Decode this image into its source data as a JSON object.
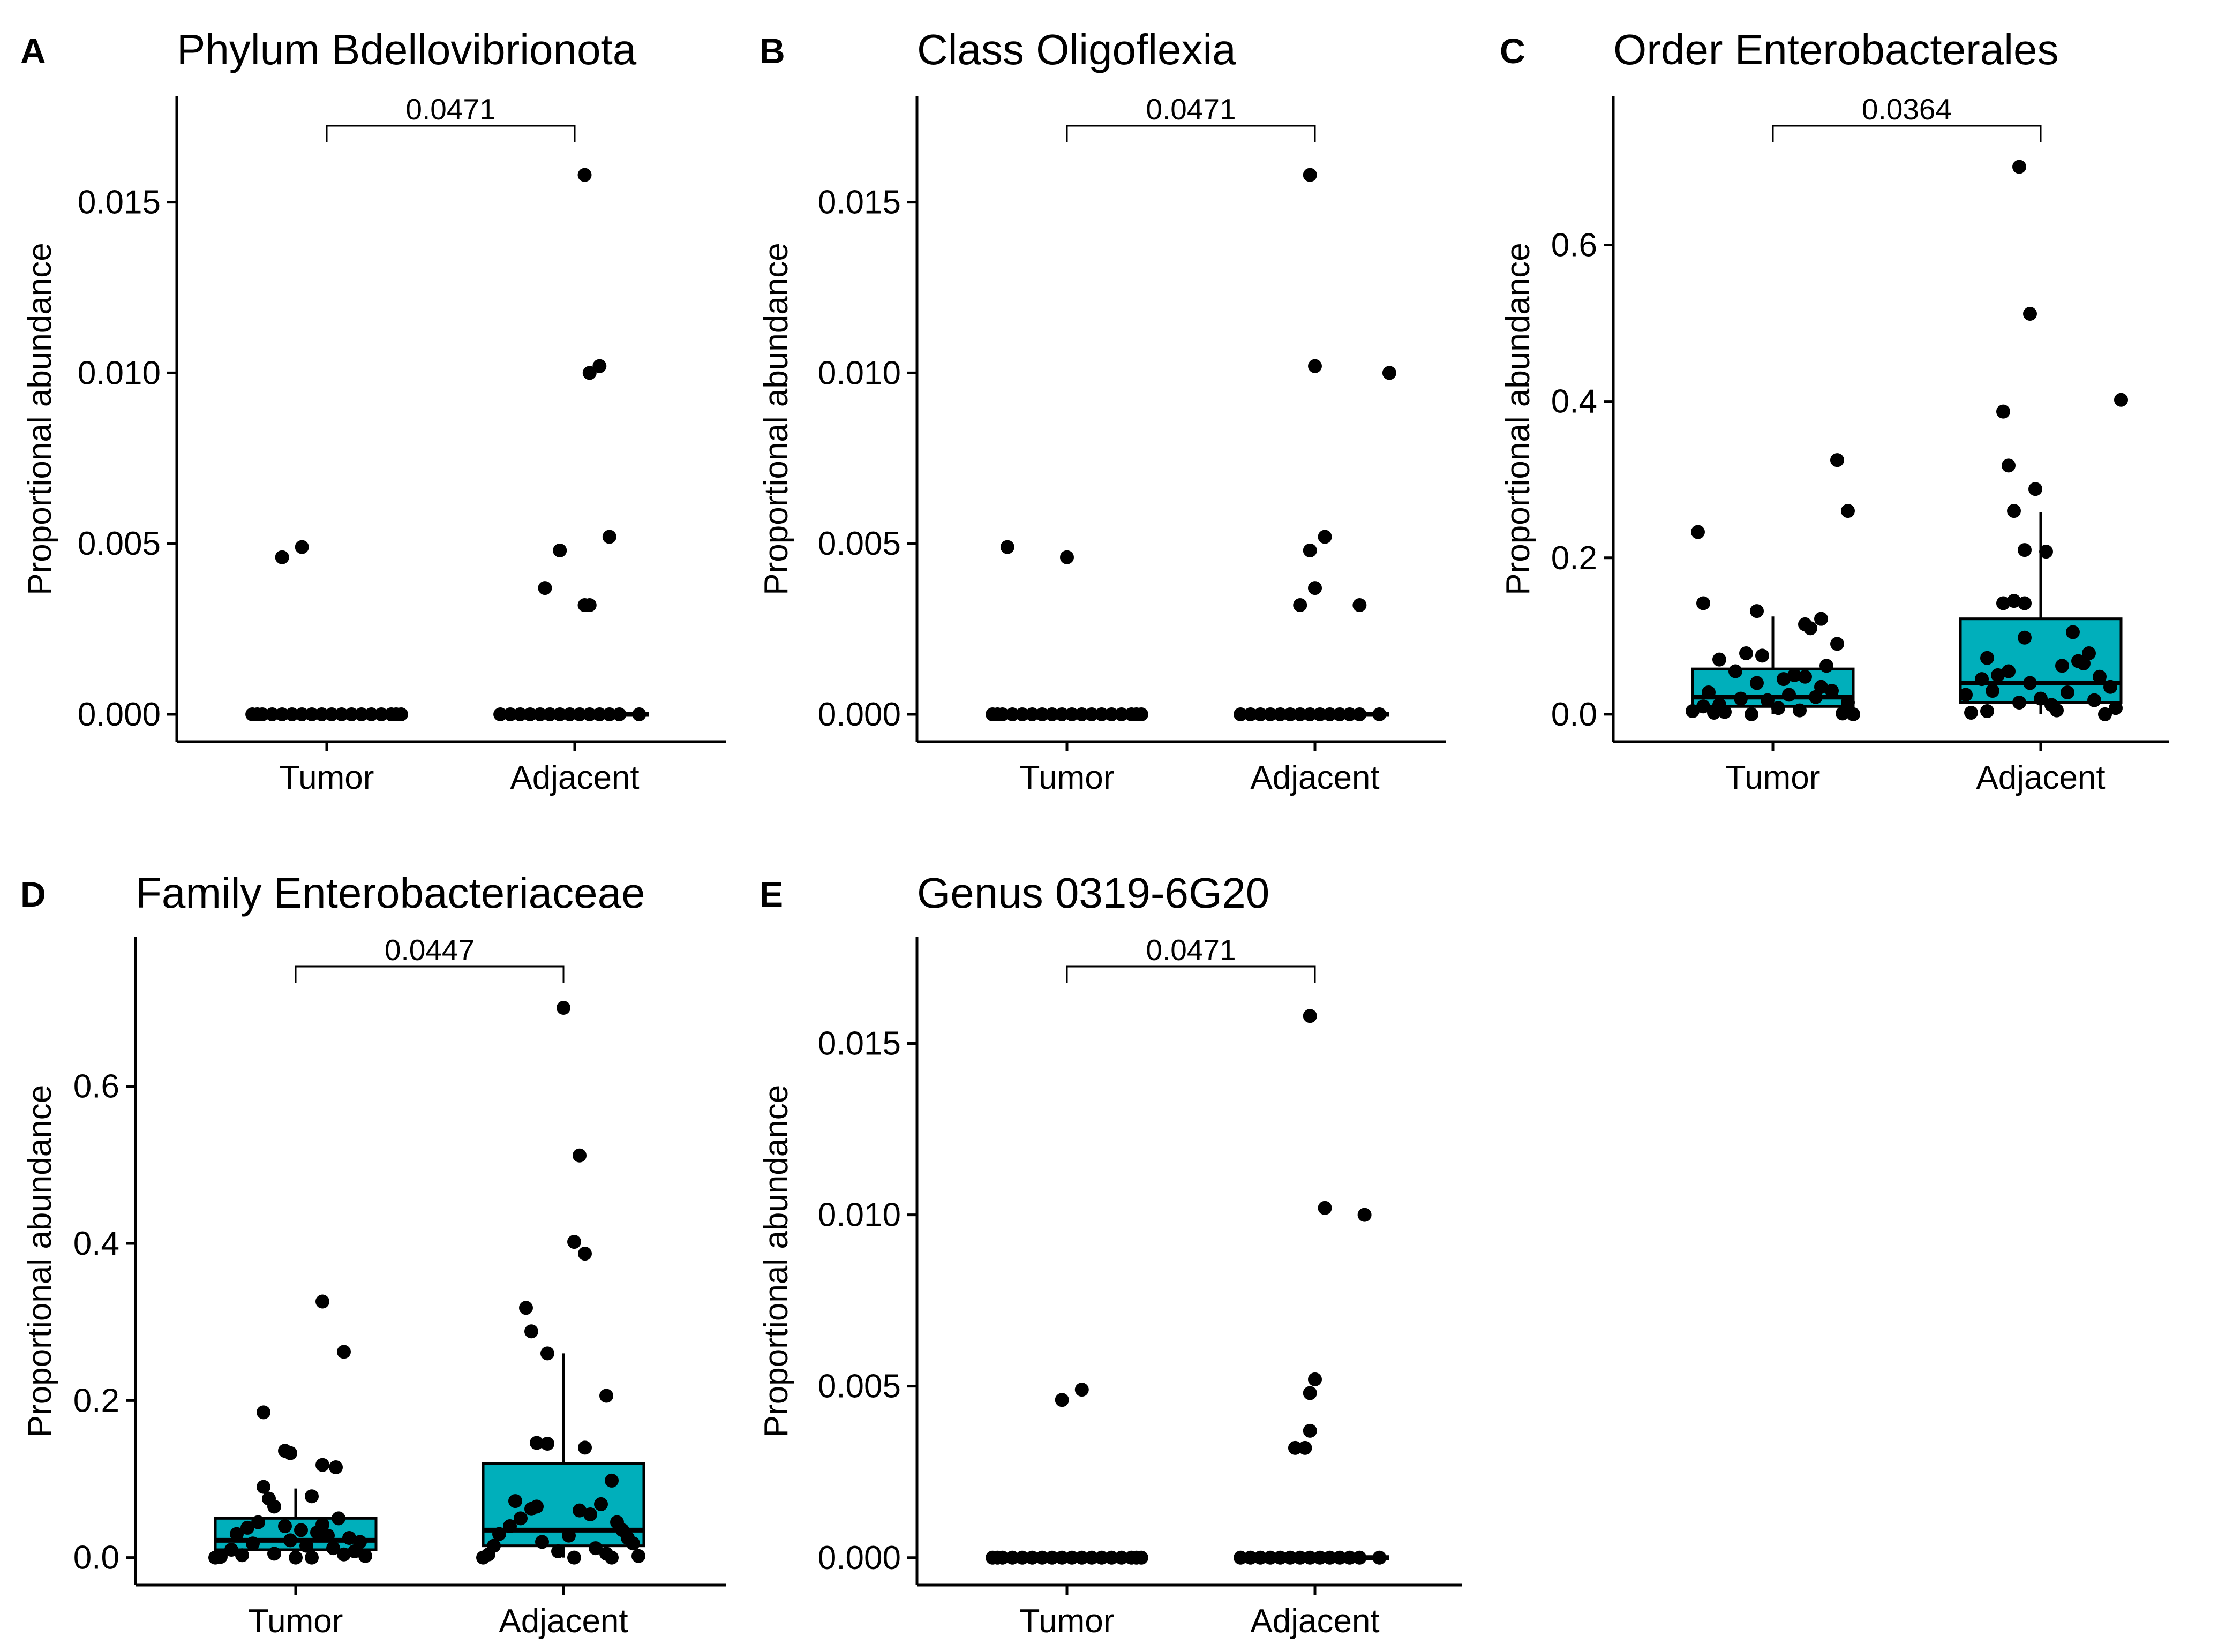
{
  "colors": {
    "box_fill": "#00AFBB",
    "point": "#000000",
    "axis": "#000000",
    "background": "#FFFFFF"
  },
  "chart_data": [
    {
      "type": "boxplot",
      "panel": "A",
      "title": "Phylum Bdellovibrionota",
      "xlabel": "",
      "ylabel": "Proportional abundance",
      "categories": [
        "Tumor",
        "Adjacent"
      ],
      "ylim": [
        -0.0008,
        0.0181
      ],
      "yticks": [
        "0.000",
        "0.005",
        "0.010",
        "0.015"
      ],
      "yticks_values": [
        0,
        0.005,
        0.01,
        0.015
      ],
      "p_value": "0.0471",
      "grid": false,
      "legend": "none",
      "boxes": [
        {
          "q1": 0,
          "median": 0,
          "q3": 0,
          "whisker_low": 0,
          "whisker_high": 0
        },
        {
          "q1": 0,
          "median": 0,
          "q3": 0,
          "whisker_low": 0,
          "whisker_high": 0
        }
      ],
      "points": [
        {
          "group": "Tumor",
          "values": [
            0.0049,
            0.0046,
            0,
            0,
            0,
            0,
            0,
            0,
            0,
            0,
            0,
            0,
            0,
            0,
            0,
            0,
            0,
            0,
            0,
            0
          ],
          "offsets": [
            -0.1,
            -0.18,
            -0.3,
            -0.26,
            -0.22,
            -0.18,
            -0.14,
            -0.1,
            -0.06,
            -0.02,
            0.02,
            0.06,
            0.1,
            0.14,
            0.18,
            0.22,
            0.26,
            0.3,
            -0.28,
            0.28
          ]
        },
        {
          "group": "Adjacent",
          "values": [
            0.0158,
            0.0102,
            0.01,
            0.0052,
            0.0048,
            0.0037,
            0.0032,
            0.0032,
            0,
            0,
            0,
            0,
            0,
            0,
            0,
            0,
            0,
            0,
            0,
            0,
            0,
            0
          ],
          "offsets": [
            0.04,
            0.1,
            0.06,
            0.14,
            -0.06,
            -0.12,
            0.04,
            0.06,
            -0.3,
            -0.26,
            -0.22,
            -0.18,
            -0.14,
            -0.1,
            -0.06,
            -0.02,
            0.02,
            0.06,
            0.1,
            0.14,
            0.18,
            0.26
          ]
        }
      ]
    },
    {
      "type": "boxplot",
      "panel": "B",
      "title": "Class Oligoflexia",
      "xlabel": "",
      "ylabel": "Proportional abundance",
      "categories": [
        "Tumor",
        "Adjacent"
      ],
      "ylim": [
        -0.0008,
        0.0181
      ],
      "yticks": [
        "0.000",
        "0.005",
        "0.010",
        "0.015"
      ],
      "yticks_values": [
        0,
        0.005,
        0.01,
        0.015
      ],
      "p_value": "0.0471",
      "grid": false,
      "legend": "none",
      "boxes": [
        {
          "q1": 0,
          "median": 0,
          "q3": 0,
          "whisker_low": 0,
          "whisker_high": 0
        },
        {
          "q1": 0,
          "median": 0,
          "q3": 0,
          "whisker_low": 0,
          "whisker_high": 0
        }
      ],
      "points": [
        {
          "group": "Tumor",
          "values": [
            0.0049,
            0.0046,
            0,
            0,
            0,
            0,
            0,
            0,
            0,
            0,
            0,
            0,
            0,
            0,
            0,
            0,
            0,
            0,
            0,
            0
          ],
          "offsets": [
            -0.24,
            0,
            -0.3,
            -0.26,
            -0.22,
            -0.18,
            -0.14,
            -0.1,
            -0.06,
            -0.02,
            0.02,
            0.06,
            0.1,
            0.14,
            0.18,
            0.22,
            0.26,
            0.3,
            -0.28,
            0.28
          ]
        },
        {
          "group": "Adjacent",
          "values": [
            0.0158,
            0.0102,
            0.01,
            0.0052,
            0.0048,
            0.0037,
            0.0032,
            0.0032,
            0,
            0,
            0,
            0,
            0,
            0,
            0,
            0,
            0,
            0,
            0,
            0,
            0,
            0
          ],
          "offsets": [
            -0.02,
            0,
            0.3,
            0.04,
            -0.02,
            0,
            -0.06,
            0.18,
            -0.3,
            -0.26,
            -0.22,
            -0.18,
            -0.14,
            -0.1,
            -0.06,
            -0.02,
            0.02,
            0.06,
            0.1,
            0.14,
            0.18,
            0.26
          ]
        }
      ]
    },
    {
      "type": "boxplot",
      "panel": "C",
      "title": "Order Enterobacterales",
      "xlabel": "",
      "ylabel": "Proportional abundance",
      "categories": [
        "Tumor",
        "Adjacent"
      ],
      "ylim": [
        -0.035,
        0.79
      ],
      "yticks": [
        "0.0",
        "0.2",
        "0.4",
        "0.6"
      ],
      "yticks_values": [
        0,
        0.2,
        0.4,
        0.6
      ],
      "p_value": "0.0364",
      "grid": false,
      "legend": "none",
      "boxes": [
        {
          "q1": 0.01,
          "median": 0.022,
          "q3": 0.058,
          "whisker_low": 0,
          "whisker_high": 0.125
        },
        {
          "q1": 0.015,
          "median": 0.04,
          "q3": 0.122,
          "whisker_low": 0,
          "whisker_high": 0.258
        }
      ],
      "points": [
        {
          "group": "Tumor",
          "values": [
            0.325,
            0.26,
            0.233,
            0.142,
            0.132,
            0.122,
            0.115,
            0.11,
            0.09,
            0.078,
            0.075,
            0.07,
            0.062,
            0.055,
            0.05,
            0.048,
            0.045,
            0.04,
            0.035,
            0.03,
            0.028,
            0.025,
            0.022,
            0.02,
            0.018,
            0.015,
            0.012,
            0.01,
            0.008,
            0.005,
            0.004,
            0.003,
            0.002,
            0.001,
            0,
            0
          ],
          "offsets": [
            0.24,
            0.28,
            -0.28,
            -0.26,
            -0.06,
            0.18,
            0.12,
            0.14,
            0.24,
            -0.1,
            -0.04,
            -0.2,
            0.2,
            -0.14,
            0.08,
            0.12,
            0.04,
            -0.06,
            0.18,
            0.22,
            -0.24,
            0.06,
            0.16,
            -0.12,
            -0.02,
            0.28,
            -0.2,
            -0.26,
            0.02,
            0.1,
            -0.3,
            -0.18,
            -0.22,
            0.26,
            -0.08,
            0.3
          ]
        },
        {
          "group": "Adjacent",
          "values": [
            0.7,
            0.512,
            0.402,
            0.387,
            0.318,
            0.288,
            0.26,
            0.21,
            0.208,
            0.145,
            0.142,
            0.142,
            0.105,
            0.098,
            0.078,
            0.072,
            0.068,
            0.065,
            0.062,
            0.055,
            0.05,
            0.048,
            0.045,
            0.04,
            0.035,
            0.03,
            0.028,
            0.025,
            0.02,
            0.018,
            0.015,
            0.012,
            0.008,
            0.005,
            0.004,
            0.002,
            0
          ],
          "offsets": [
            -0.08,
            -0.04,
            0.3,
            -0.14,
            -0.12,
            -0.02,
            -0.1,
            -0.06,
            0.02,
            -0.1,
            -0.14,
            -0.06,
            0.12,
            -0.06,
            0.18,
            -0.2,
            0.14,
            0.16,
            0.08,
            -0.12,
            -0.16,
            0.22,
            -0.22,
            -0.04,
            0.26,
            -0.18,
            0.1,
            -0.28,
            0.0,
            0.2,
            -0.08,
            0.04,
            0.28,
            0.06,
            -0.2,
            -0.26,
            0.24
          ]
        }
      ]
    },
    {
      "type": "boxplot",
      "panel": "D",
      "title": "Family Enterobacteriaceae",
      "xlabel": "",
      "ylabel": "Proportional abundance",
      "categories": [
        "Tumor",
        "Adjacent"
      ],
      "ylim": [
        -0.035,
        0.79
      ],
      "yticks": [
        "0.0",
        "0.2",
        "0.4",
        "0.6"
      ],
      "yticks_values": [
        0,
        0.2,
        0.4,
        0.6
      ],
      "p_value": "0.0447",
      "grid": false,
      "legend": "none",
      "boxes": [
        {
          "q1": 0.01,
          "median": 0.022,
          "q3": 0.05,
          "whisker_low": 0,
          "whisker_high": 0.088
        },
        {
          "q1": 0.015,
          "median": 0.035,
          "q3": 0.12,
          "whisker_low": 0,
          "whisker_high": 0.26
        }
      ],
      "points": [
        {
          "group": "Tumor",
          "values": [
            0.326,
            0.262,
            0.185,
            0.136,
            0.133,
            0.118,
            0.115,
            0.09,
            0.078,
            0.075,
            0.065,
            0.05,
            0.045,
            0.042,
            0.04,
            0.038,
            0.035,
            0.032,
            0.03,
            0.028,
            0.025,
            0.022,
            0.02,
            0.018,
            0.015,
            0.012,
            0.01,
            0.008,
            0.005,
            0.004,
            0.003,
            0.002,
            0.001,
            0,
            0,
            0
          ],
          "offsets": [
            0.1,
            0.18,
            -0.12,
            -0.04,
            -0.02,
            0.1,
            0.15,
            -0.12,
            0.06,
            -0.1,
            -0.08,
            0.16,
            -0.14,
            0.1,
            -0.04,
            -0.18,
            0.02,
            0.08,
            -0.22,
            0.12,
            0.2,
            -0.02,
            0.24,
            -0.16,
            0.04,
            0.14,
            -0.24,
            0.22,
            -0.08,
            0.18,
            -0.2,
            0.26,
            -0.28,
            -0.3,
            0.0,
            0.06
          ]
        },
        {
          "group": "Adjacent",
          "values": [
            0.7,
            0.512,
            0.402,
            0.387,
            0.318,
            0.288,
            0.26,
            0.206,
            0.146,
            0.145,
            0.14,
            0.098,
            0.072,
            0.068,
            0.065,
            0.062,
            0.06,
            0.055,
            0.05,
            0.045,
            0.04,
            0.035,
            0.03,
            0.028,
            0.025,
            0.02,
            0.018,
            0.015,
            0.012,
            0.008,
            0.005,
            0.004,
            0.002,
            0,
            0,
            0
          ],
          "offsets": [
            0.0,
            0.06,
            0.04,
            0.08,
            -0.14,
            -0.12,
            -0.06,
            0.16,
            -0.1,
            -0.06,
            0.08,
            0.18,
            -0.18,
            0.14,
            -0.1,
            -0.12,
            0.06,
            0.1,
            -0.16,
            0.2,
            -0.2,
            0.22,
            -0.24,
            0.02,
            0.24,
            -0.08,
            0.26,
            -0.26,
            0.12,
            -0.02,
            0.16,
            -0.28,
            0.28,
            -0.3,
            0.04,
            0.18
          ]
        }
      ]
    },
    {
      "type": "boxplot",
      "panel": "E",
      "title": "Genus 0319-6G20",
      "xlabel": "",
      "ylabel": "Proportional abundance",
      "categories": [
        "Tumor",
        "Adjacent"
      ],
      "ylim": [
        -0.0008,
        0.0181
      ],
      "yticks": [
        "0.000",
        "0.005",
        "0.010",
        "0.015"
      ],
      "yticks_values": [
        0,
        0.005,
        0.01,
        0.015
      ],
      "p_value": "0.0471",
      "grid": false,
      "legend": "none",
      "boxes": [
        {
          "q1": 0,
          "median": 0,
          "q3": 0,
          "whisker_low": 0,
          "whisker_high": 0
        },
        {
          "q1": 0,
          "median": 0,
          "q3": 0,
          "whisker_low": 0,
          "whisker_high": 0
        }
      ],
      "points": [
        {
          "group": "Tumor",
          "values": [
            0.0049,
            0.0046,
            0,
            0,
            0,
            0,
            0,
            0,
            0,
            0,
            0,
            0,
            0,
            0,
            0,
            0,
            0,
            0,
            0,
            0
          ],
          "offsets": [
            0.06,
            -0.02,
            -0.3,
            -0.26,
            -0.22,
            -0.18,
            -0.14,
            -0.1,
            -0.06,
            -0.02,
            0.02,
            0.06,
            0.1,
            0.14,
            0.18,
            0.22,
            0.26,
            0.3,
            -0.28,
            0.28
          ]
        },
        {
          "group": "Adjacent",
          "values": [
            0.0158,
            0.0102,
            0.01,
            0.0052,
            0.0048,
            0.0037,
            0.0032,
            0.0032,
            0,
            0,
            0,
            0,
            0,
            0,
            0,
            0,
            0,
            0,
            0,
            0,
            0,
            0
          ],
          "offsets": [
            -0.02,
            0.04,
            0.2,
            0.0,
            -0.02,
            -0.02,
            -0.08,
            -0.04,
            -0.3,
            -0.26,
            -0.22,
            -0.18,
            -0.14,
            -0.1,
            -0.06,
            -0.02,
            0.02,
            0.06,
            0.1,
            0.14,
            0.18,
            0.26
          ]
        }
      ]
    }
  ]
}
